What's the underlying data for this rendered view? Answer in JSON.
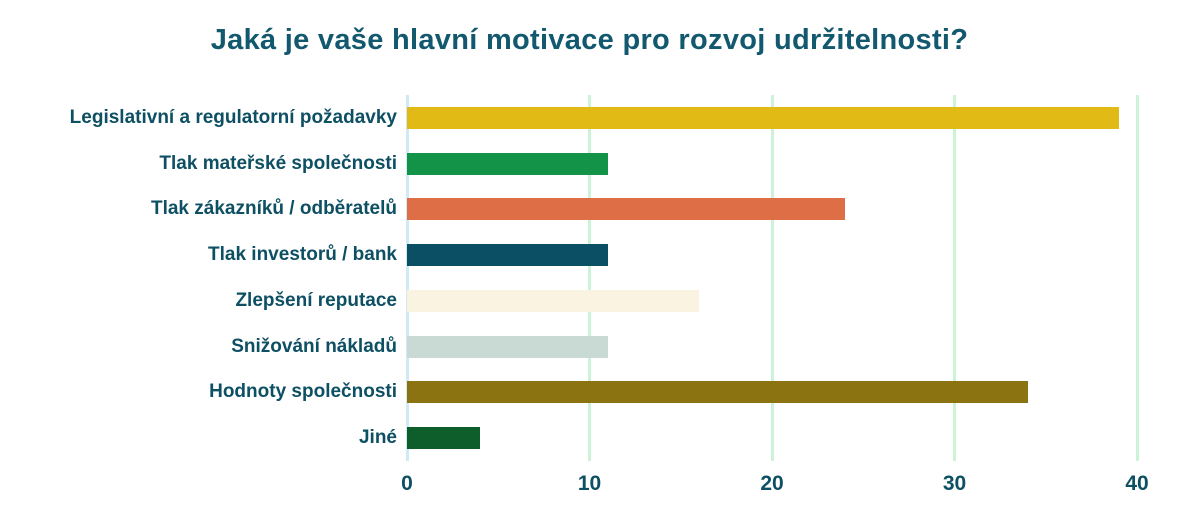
{
  "title": "Jaká je vaše hlavní motivace pro rozvoj udržitelnosti?",
  "chart_data": {
    "type": "bar",
    "orientation": "horizontal",
    "title": "Jaká je vaše hlavní motivace pro rozvoj udržitelnosti?",
    "categories": [
      "Legislativní a regulatorní požadavky",
      "Tlak mateřské společnosti",
      "Tlak zákazníků / odběratelů",
      "Tlak investorů / bank",
      "Zlepšení reputace",
      "Snižování nákladů",
      "Hodnoty společnosti",
      "Jiné"
    ],
    "values": [
      39,
      11,
      24,
      11,
      16,
      11,
      34,
      4
    ],
    "bar_colors": [
      "#e2ba16",
      "#129347",
      "#dd6e45",
      "#0a4f63",
      "#faf3e2",
      "#c9d9d3",
      "#8b7312",
      "#0d5e2b"
    ],
    "xlim": [
      0,
      40
    ],
    "x_ticks": [
      0,
      10,
      20,
      30,
      40
    ],
    "grid": true,
    "gridline_color": "#ccf2d8",
    "zero_axis_color": "#cfeaf4",
    "text_color": "#0d4f63",
    "title_color": "#12586e",
    "background": "#ffffff",
    "legend": "none",
    "xlabel": "",
    "ylabel": ""
  }
}
